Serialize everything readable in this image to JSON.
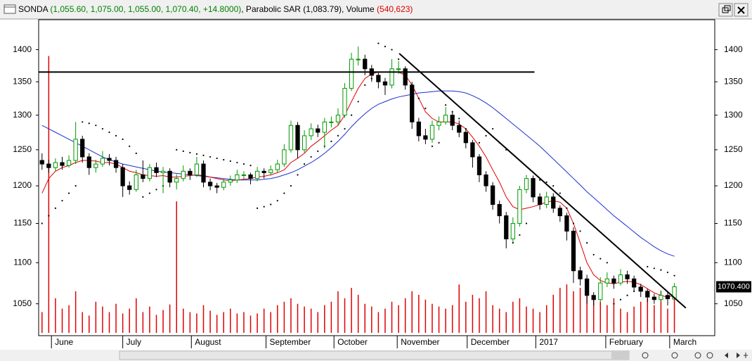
{
  "chart_data": {
    "type": "candlestick",
    "title": "SONDA",
    "quote": "(1,055.60, 1,075.00, 1,055.00, 1,070.40, +14.8000)",
    "indicators": ", Parabolic SAR (1,083.79), Volume ",
    "volume_label": "(540,623)",
    "last_price": {
      "value": 1070.4,
      "label": "1070.400"
    },
    "log_scale": true,
    "xlim": [
      -0.5,
      100
    ],
    "xticks": [
      {
        "value": 1.4,
        "label": "June"
      },
      {
        "value": 12.0,
        "label": "July"
      },
      {
        "value": 22.2,
        "label": "August"
      },
      {
        "value": 33.3,
        "label": "September"
      },
      {
        "value": 43.4,
        "label": "October"
      },
      {
        "value": 52.8,
        "label": "November"
      },
      {
        "value": 63.2,
        "label": "December"
      },
      {
        "value": 73.4,
        "label": "2017"
      },
      {
        "value": 83.8,
        "label": "February"
      },
      {
        "value": 93.3,
        "label": "March"
      }
    ],
    "ylim": [
      1016,
      1446
    ],
    "yticks": [
      1050,
      1100,
      1150,
      1200,
      1250,
      1300,
      1350,
      1400
    ],
    "up_color": "#009900",
    "down_color": "#000000",
    "ma_short_color": "#e00000",
    "ma_long_color": "#1f2fd0",
    "volume_color": "#e00000",
    "candles": [
      [
        1235,
        1245,
        1222,
        1230
      ],
      [
        1230,
        1236,
        1218,
        1225
      ],
      [
        1225,
        1238,
        1220,
        1232
      ],
      [
        1232,
        1240,
        1222,
        1228
      ],
      [
        1228,
        1242,
        1225,
        1235
      ],
      [
        1235,
        1290,
        1230,
        1265
      ],
      [
        1265,
        1270,
        1232,
        1240
      ],
      [
        1240,
        1245,
        1215,
        1225
      ],
      [
        1225,
        1236,
        1218,
        1230
      ],
      [
        1230,
        1248,
        1226,
        1238
      ],
      [
        1238,
        1244,
        1228,
        1235
      ],
      [
        1235,
        1240,
        1218,
        1225
      ],
      [
        1225,
        1230,
        1185,
        1200
      ],
      [
        1200,
        1206,
        1188,
        1195
      ],
      [
        1195,
        1222,
        1192,
        1215
      ],
      [
        1215,
        1235,
        1205,
        1210
      ],
      [
        1210,
        1230,
        1206,
        1225
      ],
      [
        1225,
        1232,
        1212,
        1218
      ],
      [
        1218,
        1226,
        1190,
        1220
      ],
      [
        1220,
        1224,
        1198,
        1205
      ],
      [
        1205,
        1216,
        1195,
        1210
      ],
      [
        1210,
        1228,
        1206,
        1220
      ],
      [
        1220,
        1224,
        1208,
        1215
      ],
      [
        1215,
        1240,
        1212,
        1230
      ],
      [
        1230,
        1235,
        1198,
        1205
      ],
      [
        1205,
        1210,
        1194,
        1200
      ],
      [
        1200,
        1204,
        1190,
        1198
      ],
      [
        1198,
        1210,
        1194,
        1205
      ],
      [
        1205,
        1214,
        1200,
        1208
      ],
      [
        1208,
        1222,
        1204,
        1215
      ],
      [
        1215,
        1220,
        1208,
        1215
      ],
      [
        1215,
        1218,
        1202,
        1210
      ],
      [
        1210,
        1226,
        1206,
        1220
      ],
      [
        1220,
        1224,
        1210,
        1218
      ],
      [
        1218,
        1228,
        1214,
        1222
      ],
      [
        1222,
        1236,
        1218,
        1230
      ],
      [
        1230,
        1258,
        1226,
        1250
      ],
      [
        1250,
        1292,
        1246,
        1285
      ],
      [
        1285,
        1290,
        1238,
        1250
      ],
      [
        1250,
        1278,
        1246,
        1270
      ],
      [
        1270,
        1288,
        1264,
        1280
      ],
      [
        1280,
        1286,
        1268,
        1275
      ],
      [
        1275,
        1296,
        1252,
        1290
      ],
      [
        1290,
        1298,
        1282,
        1290
      ],
      [
        1290,
        1310,
        1285,
        1300
      ],
      [
        1300,
        1348,
        1296,
        1340
      ],
      [
        1340,
        1395,
        1336,
        1385
      ],
      [
        1385,
        1405,
        1375,
        1385
      ],
      [
        1385,
        1392,
        1360,
        1370
      ],
      [
        1370,
        1376,
        1350,
        1360
      ],
      [
        1360,
        1364,
        1340,
        1350
      ],
      [
        1350,
        1356,
        1330,
        1345
      ],
      [
        1345,
        1385,
        1340,
        1370
      ],
      [
        1370,
        1382,
        1362,
        1370
      ],
      [
        1370,
        1374,
        1338,
        1345
      ],
      [
        1345,
        1350,
        1280,
        1290
      ],
      [
        1290,
        1296,
        1262,
        1270
      ],
      [
        1270,
        1280,
        1258,
        1265
      ],
      [
        1265,
        1292,
        1260,
        1285
      ],
      [
        1285,
        1298,
        1278,
        1290
      ],
      [
        1290,
        1312,
        1286,
        1300
      ],
      [
        1300,
        1305,
        1278,
        1285
      ],
      [
        1285,
        1292,
        1268,
        1275
      ],
      [
        1275,
        1280,
        1252,
        1260
      ],
      [
        1260,
        1264,
        1225,
        1240
      ],
      [
        1240,
        1244,
        1205,
        1215
      ],
      [
        1215,
        1220,
        1192,
        1200
      ],
      [
        1200,
        1205,
        1168,
        1175
      ],
      [
        1175,
        1180,
        1150,
        1160
      ],
      [
        1160,
        1165,
        1118,
        1130
      ],
      [
        1130,
        1158,
        1126,
        1150
      ],
      [
        1150,
        1200,
        1146,
        1195
      ],
      [
        1195,
        1215,
        1190,
        1210
      ],
      [
        1210,
        1214,
        1178,
        1185
      ],
      [
        1185,
        1190,
        1168,
        1175
      ],
      [
        1175,
        1192,
        1170,
        1185
      ],
      [
        1185,
        1190,
        1164,
        1170
      ],
      [
        1170,
        1174,
        1152,
        1160
      ],
      [
        1160,
        1164,
        1128,
        1140
      ],
      [
        1140,
        1145,
        1075,
        1090
      ],
      [
        1090,
        1095,
        1072,
        1080
      ],
      [
        1080,
        1085,
        1050,
        1060
      ],
      [
        1060,
        1064,
        1048,
        1055
      ],
      [
        1055,
        1082,
        1052,
        1075
      ],
      [
        1075,
        1088,
        1070,
        1080
      ],
      [
        1080,
        1084,
        1068,
        1075
      ],
      [
        1075,
        1092,
        1072,
        1085
      ],
      [
        1085,
        1090,
        1074,
        1080
      ],
      [
        1080,
        1084,
        1064,
        1070
      ],
      [
        1070,
        1074,
        1058,
        1065
      ],
      [
        1065,
        1068,
        1052,
        1058
      ],
      [
        1058,
        1062,
        1050,
        1055
      ],
      [
        1055,
        1066,
        1052,
        1060
      ],
      [
        1060,
        1064,
        1048,
        1056
      ],
      [
        1055.6,
        1075,
        1055,
        1070.4
      ]
    ],
    "ma_short": [
      1190,
      1210,
      1220,
      1225,
      1228,
      1232,
      1235,
      1235,
      1234,
      1232,
      1232,
      1230,
      1225,
      1220,
      1218,
      1215,
      1214,
      1213,
      1214,
      1212,
      1212,
      1213,
      1214,
      1215,
      1214,
      1212,
      1210,
      1208,
      1207,
      1208,
      1209,
      1210,
      1212,
      1213,
      1215,
      1218,
      1222,
      1232,
      1238,
      1245,
      1255,
      1262,
      1270,
      1278,
      1285,
      1300,
      1320,
      1340,
      1355,
      1362,
      1365,
      1365,
      1365,
      1365,
      1360,
      1345,
      1325,
      1305,
      1295,
      1290,
      1290,
      1290,
      1287,
      1280,
      1268,
      1255,
      1240,
      1222,
      1205,
      1185,
      1172,
      1168,
      1170,
      1172,
      1175,
      1178,
      1180,
      1178,
      1170,
      1150,
      1125,
      1100,
      1085,
      1078,
      1075,
      1074,
      1076,
      1077,
      1076,
      1073,
      1068,
      1063,
      1060,
      1058,
      1060
    ],
    "ma_long": [
      1285,
      1280,
      1275,
      1270,
      1265,
      1260,
      1255,
      1250,
      1245,
      1240,
      1236,
      1233,
      1230,
      1228,
      1226,
      1224,
      1222,
      1220,
      1219,
      1218,
      1217,
      1216,
      1215,
      1214,
      1213,
      1212,
      1211,
      1210,
      1209,
      1208,
      1208,
      1208,
      1208,
      1209,
      1210,
      1212,
      1215,
      1218,
      1222,
      1227,
      1232,
      1238,
      1245,
      1253,
      1262,
      1272,
      1283,
      1293,
      1302,
      1310,
      1316,
      1320,
      1324,
      1327,
      1329,
      1331,
      1333,
      1334,
      1335,
      1336,
      1336,
      1336,
      1335,
      1333,
      1329,
      1324,
      1318,
      1311,
      1303,
      1295,
      1287,
      1279,
      1271,
      1263,
      1255,
      1246,
      1237,
      1228,
      1219,
      1210,
      1201,
      1192,
      1184,
      1176,
      1168,
      1160,
      1153,
      1146,
      1139,
      1132,
      1126,
      1120,
      1115,
      1111,
      1108
    ],
    "sar": [
      1150,
      1160,
      1170,
      1180,
      1190,
      1200,
      1290,
      1288,
      1285,
      1280,
      1275,
      1270,
      1265,
      1255,
      1245,
      1185,
      1190,
      1195,
      1200,
      1205,
      1250,
      1248,
      1246,
      1244,
      1242,
      1240,
      1238,
      1236,
      1234,
      1232,
      1230,
      1228,
      1170,
      1172,
      1175,
      1180,
      1190,
      1200,
      1215,
      1230,
      1240,
      1248,
      1255,
      1262,
      1270,
      1280,
      1300,
      1320,
      1345,
      1355,
      1410,
      1405,
      1400,
      1385,
      1365,
      1345,
      1325,
      1310,
      1255,
      1260,
      1315,
      1305,
      1295,
      1280,
      1255,
      1260,
      1270,
      1280,
      1260,
      1250,
      1125,
      1135,
      1150,
      1210,
      1208,
      1205,
      1200,
      1190,
      1170,
      1150,
      1140,
      1125,
      1110,
      1105,
      1100,
      1050,
      1055,
      1060,
      1065,
      1070,
      1095,
      1093,
      1091,
      1088,
      1084
    ],
    "volume_lim": [
      0,
      4200000
    ],
    "volume": [
      300000,
      4000000,
      500000,
      350000,
      400000,
      600000,
      300000,
      250000,
      450000,
      380000,
      300000,
      420000,
      280000,
      350000,
      500000,
      300000,
      380000,
      260000,
      330000,
      410000,
      1900000,
      350000,
      300000,
      280000,
      400000,
      320000,
      260000,
      300000,
      350000,
      280000,
      300000,
      250000,
      280000,
      350000,
      300000,
      400000,
      450000,
      500000,
      420000,
      380000,
      350000,
      300000,
      400000,
      450000,
      600000,
      500000,
      650000,
      550000,
      420000,
      380000,
      300000,
      350000,
      450000,
      400000,
      500000,
      600000,
      550000,
      480000,
      420000,
      380000,
      350000,
      400000,
      700000,
      450000,
      550000,
      500000,
      600000,
      400000,
      350000,
      300000,
      450000,
      500000,
      380000,
      350000,
      300000,
      400000,
      550000,
      650000,
      700000,
      600000,
      650000,
      550000,
      500000,
      450000,
      400000,
      500000,
      350000,
      300000,
      380000,
      450000,
      500000,
      400000,
      600000,
      350000,
      540623
    ],
    "trendlines": [
      {
        "x": [
          -0.5,
          73.2
        ],
        "y": [
          1365,
          1365
        ]
      },
      {
        "x": [
          53.1,
          95.7
        ],
        "y": [
          1394,
          1045
        ]
      }
    ]
  }
}
